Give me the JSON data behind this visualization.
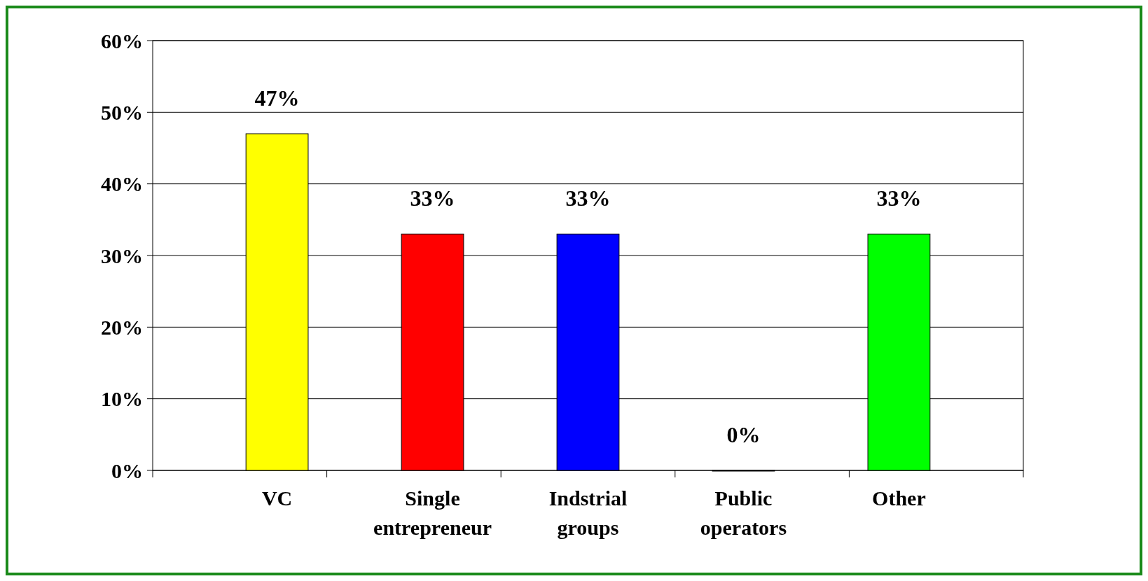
{
  "chart_data": {
    "type": "bar",
    "categories": [
      "VC",
      "Single entrepreneur",
      "Indstrial groups",
      "Public operators",
      "Other"
    ],
    "values": [
      47,
      33,
      33,
      0,
      33
    ],
    "colors": [
      "#ffff00",
      "#ff0000",
      "#0000ff",
      "#00c0c0",
      "#00ff00"
    ],
    "value_labels": [
      "47%",
      "33%",
      "33%",
      "0%",
      "33%"
    ],
    "ylim": [
      0,
      60
    ],
    "yticks": [
      {
        "value": 0,
        "label": "0%"
      },
      {
        "value": 10,
        "label": "10%"
      },
      {
        "value": 20,
        "label": "20%"
      },
      {
        "value": 30,
        "label": "30%"
      },
      {
        "value": 40,
        "label": "40%"
      },
      {
        "value": 50,
        "label": "50%"
      },
      {
        "value": 60,
        "label": "60%"
      }
    ],
    "grid": "y"
  }
}
